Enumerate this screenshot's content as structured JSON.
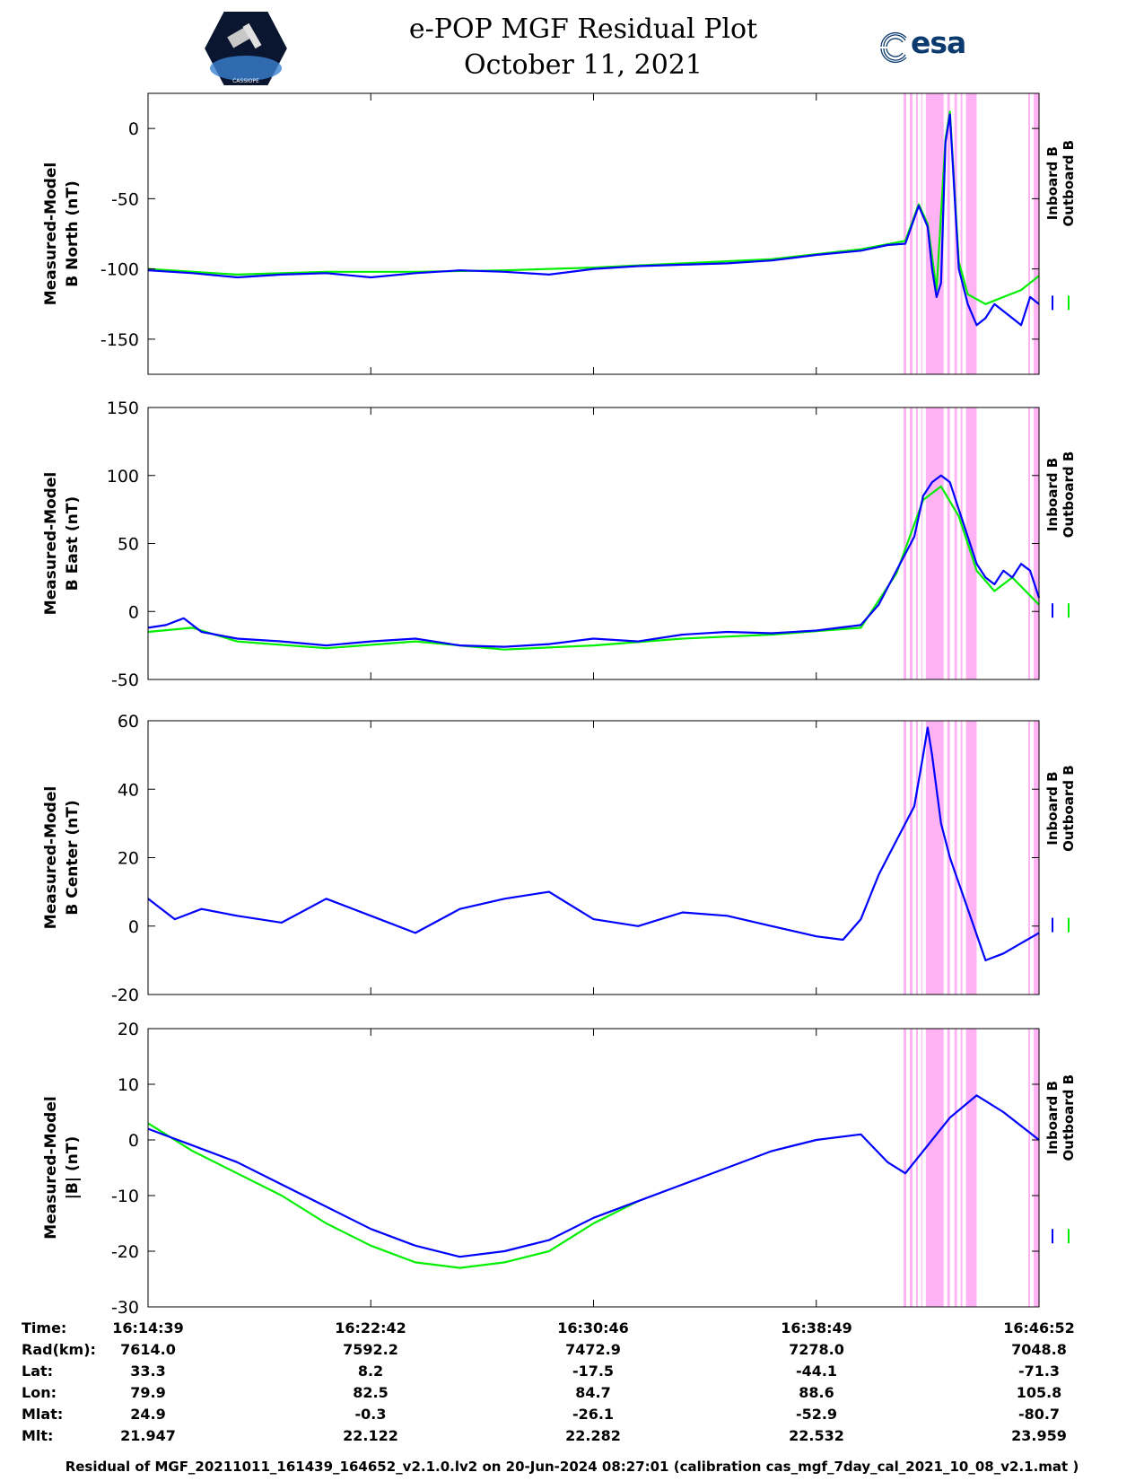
{
  "header": {
    "title_line1": "e-POP MGF Residual Plot",
    "title_line2": "October 11, 2021",
    "left_logo_text": "CASSIOPE",
    "right_logo_text": "esa"
  },
  "colors": {
    "inboard": "#0000ff",
    "outboard": "#00ee00",
    "highlight": "#ffb3f5"
  },
  "legend": [
    "Inboard B",
    "Outboard B"
  ],
  "chart_data": [
    {
      "type": "line",
      "ylabel": [
        "Measured-Model",
        "B North (nT)"
      ],
      "ylim": [
        -175,
        25
      ],
      "yticks": [
        0,
        -50,
        -100,
        -150
      ],
      "series": [
        {
          "name": "Inboard B",
          "color": "#0000ff",
          "x": [
            0,
            0.05,
            0.1,
            0.15,
            0.2,
            0.25,
            0.3,
            0.35,
            0.4,
            0.45,
            0.5,
            0.55,
            0.6,
            0.65,
            0.7,
            0.75,
            0.8,
            0.83,
            0.85,
            0.865,
            0.875,
            0.88,
            0.885,
            0.89,
            0.895,
            0.9,
            0.91,
            0.92,
            0.93,
            0.94,
            0.95,
            0.96,
            0.97,
            0.98,
            0.99,
            1.0
          ],
          "values": [
            -101,
            -103,
            -106,
            -104,
            -103,
            -106,
            -103,
            -101,
            -102,
            -104,
            -100,
            -98,
            -97,
            -96,
            -94,
            -90,
            -87,
            -83,
            -82,
            -55,
            -70,
            -100,
            -120,
            -110,
            -10,
            10,
            -100,
            -125,
            -140,
            -135,
            -125,
            -130,
            -135,
            -140,
            -120,
            -125
          ]
        },
        {
          "name": "Outboard B",
          "color": "#00ee00",
          "x": [
            0,
            0.1,
            0.2,
            0.3,
            0.4,
            0.5,
            0.6,
            0.7,
            0.8,
            0.85,
            0.865,
            0.875,
            0.885,
            0.895,
            0.9,
            0.91,
            0.92,
            0.94,
            0.96,
            0.98,
            1.0
          ],
          "values": [
            -100,
            -104,
            -102,
            -102,
            -101,
            -99,
            -96,
            -93,
            -86,
            -80,
            -54,
            -68,
            -115,
            -8,
            12,
            -95,
            -118,
            -125,
            -120,
            -115,
            -105
          ]
        }
      ],
      "highlights": [
        [
          0.848,
          0.851
        ],
        [
          0.855,
          0.858
        ],
        [
          0.862,
          0.864
        ],
        [
          0.868,
          0.869
        ],
        [
          0.873,
          0.893
        ],
        [
          0.897,
          0.9
        ],
        [
          0.905,
          0.908
        ],
        [
          0.912,
          0.914
        ],
        [
          0.918,
          0.93
        ],
        [
          0.988,
          0.99
        ],
        [
          0.994,
          1.0
        ]
      ]
    },
    {
      "type": "line",
      "ylabel": [
        "Measured-Model",
        "B East (nT)"
      ],
      "ylim": [
        -50,
        150
      ],
      "yticks": [
        150,
        100,
        50,
        0,
        -50
      ],
      "series": [
        {
          "name": "Inboard B",
          "color": "#0000ff",
          "x": [
            0,
            0.02,
            0.04,
            0.06,
            0.1,
            0.15,
            0.2,
            0.25,
            0.3,
            0.35,
            0.4,
            0.45,
            0.5,
            0.55,
            0.6,
            0.65,
            0.7,
            0.75,
            0.8,
            0.82,
            0.84,
            0.86,
            0.87,
            0.88,
            0.89,
            0.9,
            0.91,
            0.92,
            0.93,
            0.94,
            0.95,
            0.96,
            0.97,
            0.98,
            0.99,
            1.0
          ],
          "values": [
            -12,
            -10,
            -5,
            -15,
            -20,
            -22,
            -25,
            -22,
            -20,
            -25,
            -26,
            -24,
            -20,
            -22,
            -17,
            -15,
            -16,
            -14,
            -10,
            5,
            30,
            55,
            85,
            95,
            100,
            95,
            75,
            55,
            35,
            25,
            20,
            30,
            25,
            35,
            30,
            10
          ]
        },
        {
          "name": "Outboard B",
          "color": "#00ee00",
          "x": [
            0,
            0.05,
            0.1,
            0.2,
            0.3,
            0.4,
            0.5,
            0.6,
            0.7,
            0.8,
            0.84,
            0.87,
            0.89,
            0.91,
            0.93,
            0.95,
            0.97,
            1.0
          ],
          "values": [
            -15,
            -12,
            -22,
            -27,
            -22,
            -28,
            -25,
            -20,
            -17,
            -12,
            28,
            82,
            92,
            70,
            30,
            15,
            25,
            5
          ]
        }
      ],
      "highlights": [
        [
          0.848,
          0.851
        ],
        [
          0.855,
          0.858
        ],
        [
          0.862,
          0.864
        ],
        [
          0.868,
          0.869
        ],
        [
          0.873,
          0.893
        ],
        [
          0.897,
          0.9
        ],
        [
          0.905,
          0.908
        ],
        [
          0.912,
          0.914
        ],
        [
          0.918,
          0.93
        ],
        [
          0.988,
          0.99
        ],
        [
          0.994,
          1.0
        ]
      ]
    },
    {
      "type": "line",
      "ylabel": [
        "Measured-Model",
        "B Center (nT)"
      ],
      "ylim": [
        -20,
        60
      ],
      "yticks": [
        60,
        40,
        20,
        0,
        -20
      ],
      "series": [
        {
          "name": "Inboard B",
          "color": "#0000ff",
          "x": [
            0,
            0.03,
            0.06,
            0.1,
            0.15,
            0.2,
            0.25,
            0.3,
            0.35,
            0.4,
            0.45,
            0.5,
            0.55,
            0.6,
            0.65,
            0.7,
            0.75,
            0.78,
            0.8,
            0.82,
            0.84,
            0.86,
            0.87,
            0.875,
            0.88,
            0.89,
            0.9,
            0.92,
            0.94,
            0.96,
            0.98,
            1.0
          ],
          "values": [
            8,
            2,
            5,
            3,
            1,
            8,
            3,
            -2,
            5,
            8,
            10,
            2,
            0,
            4,
            3,
            0,
            -3,
            -4,
            2,
            15,
            25,
            35,
            50,
            58,
            50,
            30,
            20,
            5,
            -10,
            -8,
            -5,
            -2
          ]
        }
      ],
      "highlights": [
        [
          0.848,
          0.851
        ],
        [
          0.855,
          0.858
        ],
        [
          0.862,
          0.864
        ],
        [
          0.868,
          0.869
        ],
        [
          0.873,
          0.893
        ],
        [
          0.897,
          0.9
        ],
        [
          0.905,
          0.908
        ],
        [
          0.912,
          0.914
        ],
        [
          0.918,
          0.93
        ],
        [
          0.988,
          0.99
        ],
        [
          0.994,
          1.0
        ]
      ]
    },
    {
      "type": "line",
      "ylabel": [
        "Measured-Model",
        "|B| (nT)"
      ],
      "ylim": [
        -30,
        20
      ],
      "yticks": [
        20,
        10,
        0,
        -10,
        -20,
        -30
      ],
      "series": [
        {
          "name": "Inboard B",
          "color": "#0000ff",
          "x": [
            0,
            0.05,
            0.1,
            0.15,
            0.2,
            0.25,
            0.3,
            0.35,
            0.4,
            0.45,
            0.5,
            0.55,
            0.6,
            0.65,
            0.7,
            0.75,
            0.8,
            0.83,
            0.85,
            0.87,
            0.9,
            0.93,
            0.96,
            1.0
          ],
          "values": [
            2,
            -1,
            -4,
            -8,
            -12,
            -16,
            -19,
            -21,
            -20,
            -18,
            -14,
            -11,
            -8,
            -5,
            -2,
            0,
            1,
            -4,
            -6,
            -2,
            4,
            8,
            5,
            0
          ]
        },
        {
          "name": "Outboard B",
          "color": "#00ee00",
          "x": [
            0,
            0.05,
            0.1,
            0.15,
            0.2,
            0.25,
            0.3,
            0.35,
            0.4,
            0.45,
            0.5,
            0.55
          ],
          "values": [
            3,
            -2,
            -6,
            -10,
            -15,
            -19,
            -22,
            -23,
            -22,
            -20,
            -15,
            -11
          ]
        }
      ],
      "highlights": [
        [
          0.848,
          0.851
        ],
        [
          0.855,
          0.858
        ],
        [
          0.862,
          0.864
        ],
        [
          0.868,
          0.869
        ],
        [
          0.873,
          0.893
        ],
        [
          0.897,
          0.9
        ],
        [
          0.905,
          0.908
        ],
        [
          0.912,
          0.914
        ],
        [
          0.918,
          0.93
        ],
        [
          0.988,
          0.99
        ],
        [
          0.994,
          1.0
        ]
      ]
    }
  ],
  "table": {
    "rows": [
      {
        "label": "Time:",
        "values": [
          "16:14:39",
          "16:22:42",
          "16:30:46",
          "16:38:49",
          "16:46:52"
        ]
      },
      {
        "label": "Rad(km):",
        "values": [
          "7614.0",
          "7592.2",
          "7472.9",
          "7278.0",
          "7048.8"
        ]
      },
      {
        "label": "Lat:",
        "values": [
          "33.3",
          "8.2",
          "-17.5",
          "-44.1",
          "-71.3"
        ]
      },
      {
        "label": "Lon:",
        "values": [
          "79.9",
          "82.5",
          "84.7",
          "88.6",
          "105.8"
        ]
      },
      {
        "label": "Mlat:",
        "values": [
          "24.9",
          "-0.3",
          "-26.1",
          "-52.9",
          "-80.7"
        ]
      },
      {
        "label": "Mlt:",
        "values": [
          "21.947",
          "22.122",
          "22.282",
          "22.532",
          "23.959"
        ]
      }
    ]
  },
  "footer": "Residual of MGF_20211011_161439_164652_v2.1.0.lv2 on 20-Jun-2024 08:27:01 (calibration cas_mgf_7day_cal_2021_10_08_v2.1.mat )"
}
